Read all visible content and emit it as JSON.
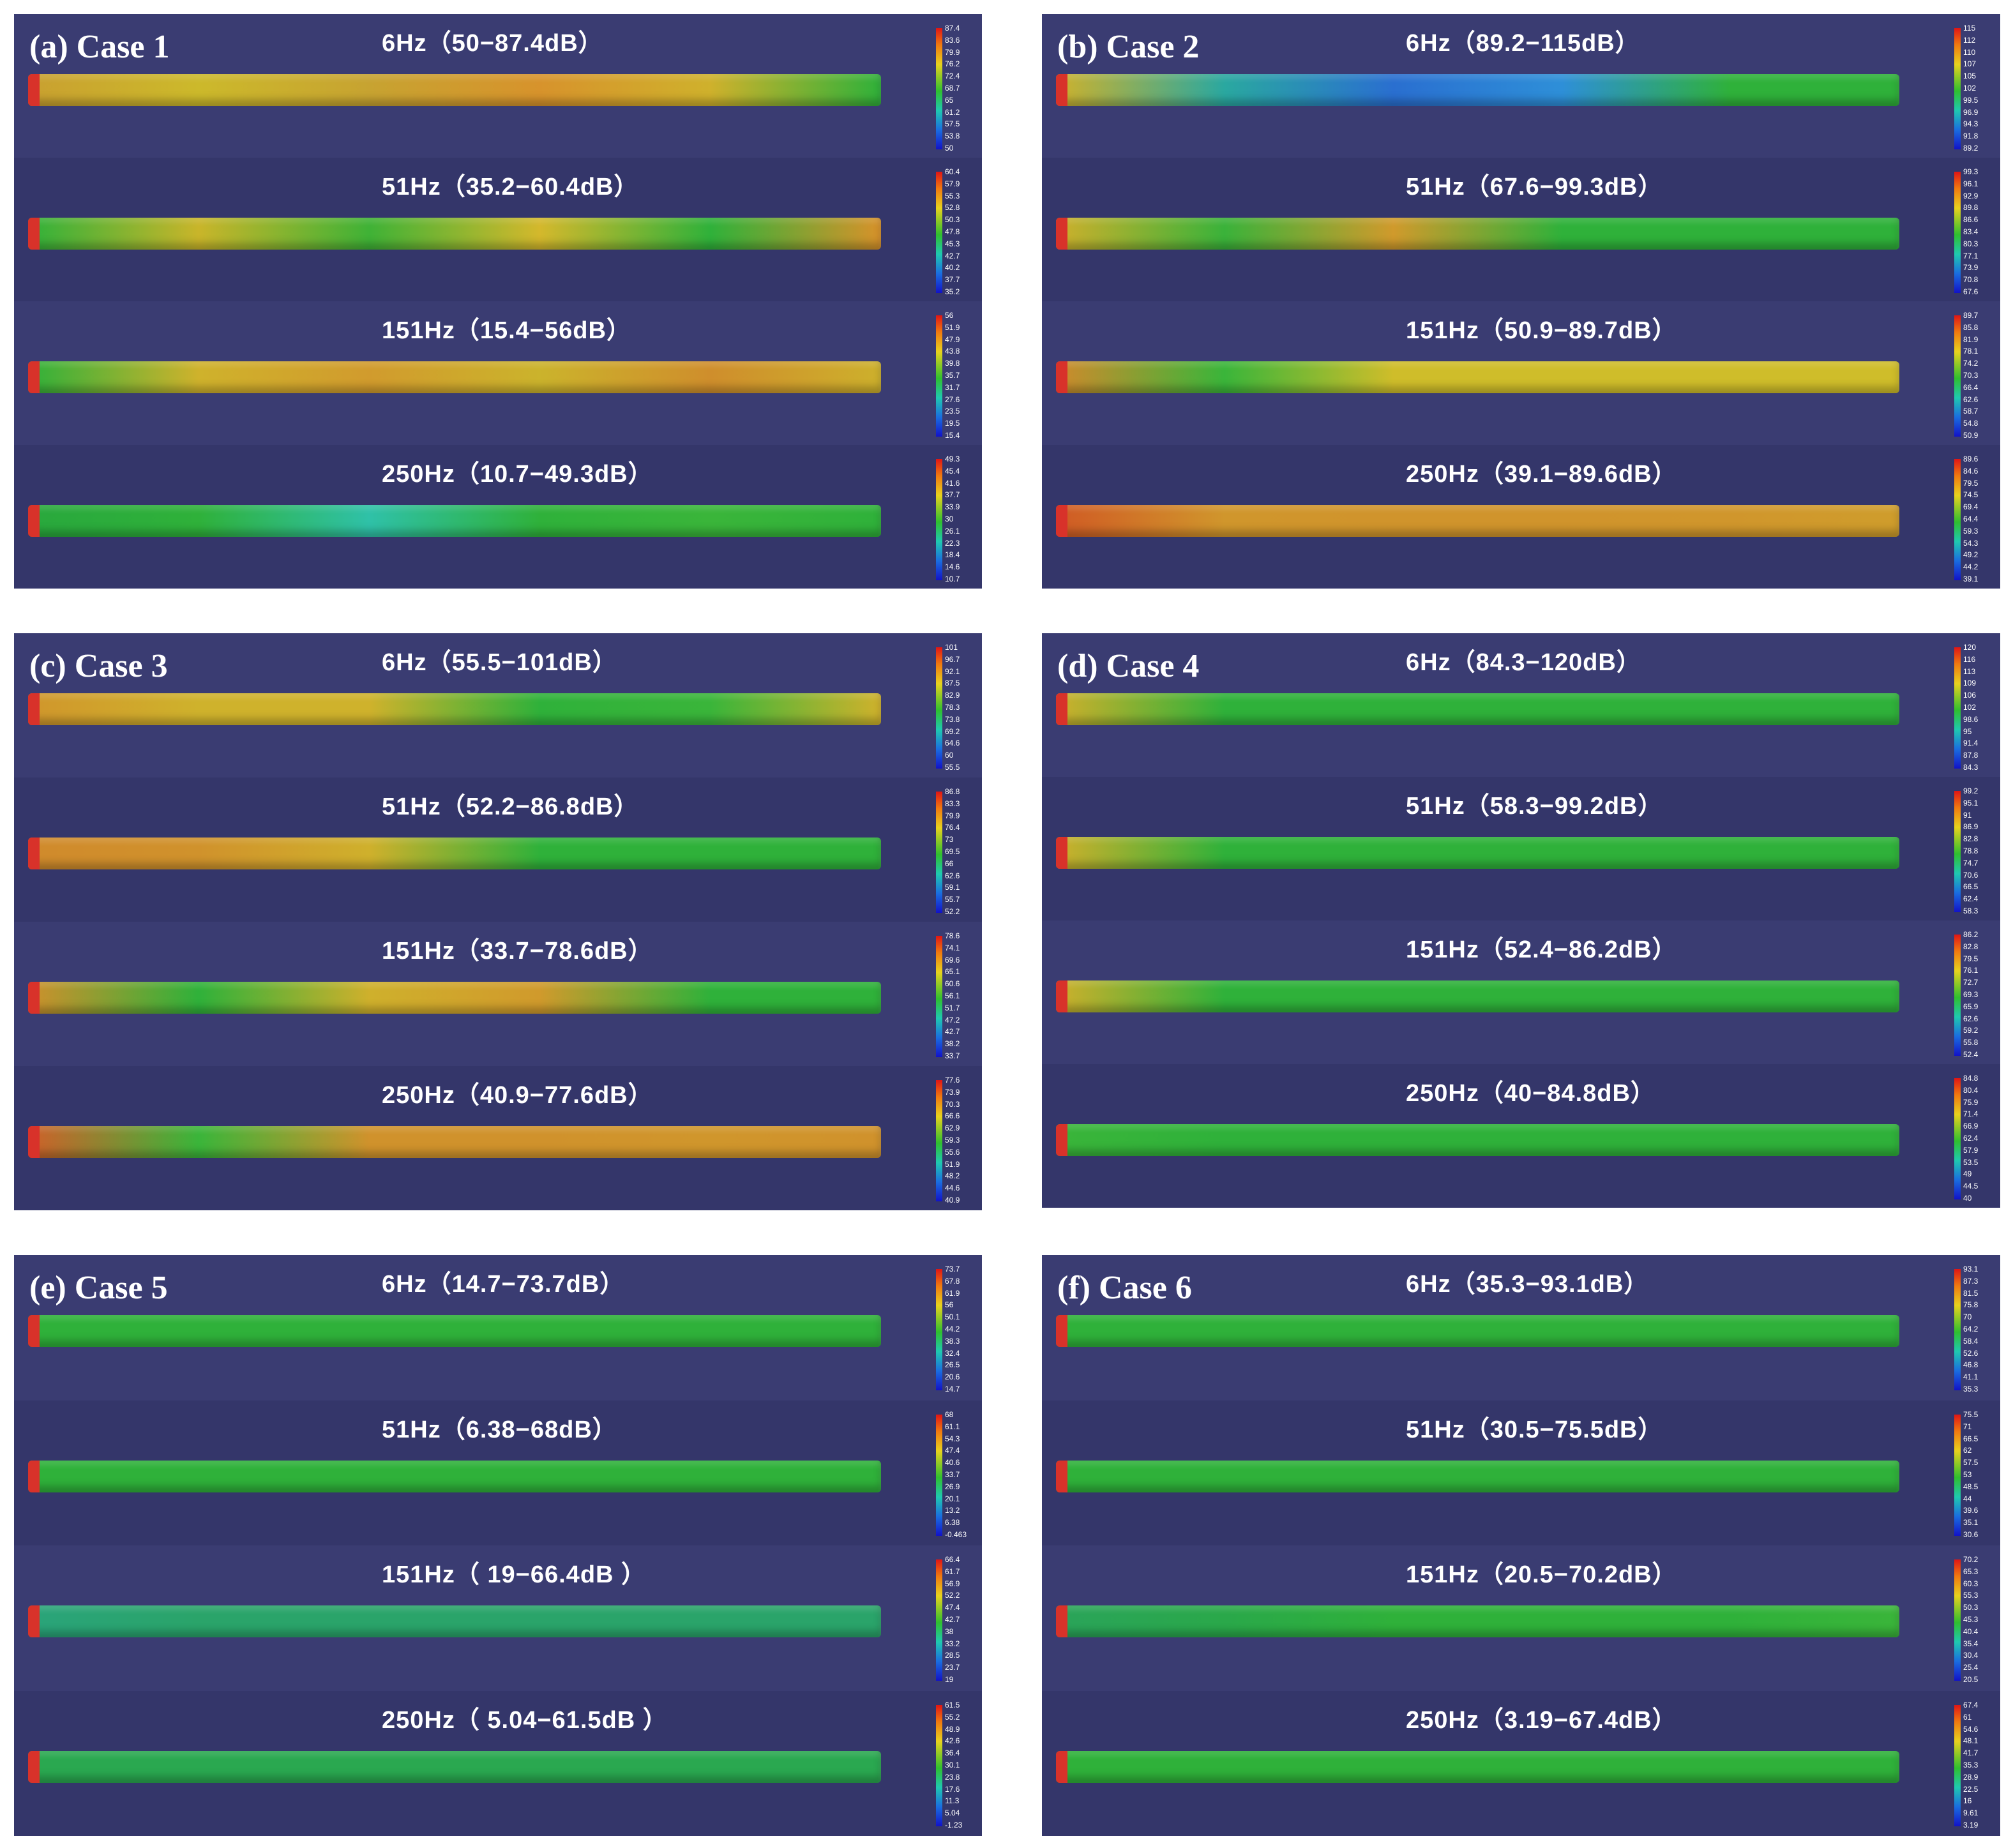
{
  "panels": [
    {
      "label": "(a) Case 1",
      "rows": [
        {
          "title": "6Hz（50−87.4dB）",
          "ticks": [
            "87.4",
            "83.6",
            "79.9",
            "76.2",
            "72.4",
            "68.7",
            "65",
            "61.2",
            "57.5",
            "53.8",
            "50"
          ],
          "colors": [
            "#c9a030",
            "#ccb92b",
            "#c7a331",
            "#d7932c",
            "#cfb12c",
            "#2fb13a"
          ]
        },
        {
          "title": "51Hz（35.2−60.4dB）",
          "ticks": [
            "60.4",
            "57.9",
            "55.3",
            "52.8",
            "50.3",
            "47.8",
            "45.3",
            "42.7",
            "40.2",
            "37.7",
            "35.2"
          ],
          "colors": [
            "#2fb13a",
            "#c9b52a",
            "#3fb236",
            "#d4b82c",
            "#2fb13a",
            "#d8922a"
          ]
        },
        {
          "title": "151Hz（15.4−56dB）",
          "ticks": [
            "56",
            "51.9",
            "47.9",
            "43.8",
            "39.8",
            "35.7",
            "31.7",
            "27.6",
            "23.5",
            "19.5",
            "15.4"
          ],
          "colors": [
            "#2fb13a",
            "#cfb22c",
            "#d19b2d",
            "#cbb32c",
            "#cf8e2c",
            "#cdb02c"
          ]
        },
        {
          "title": "250Hz（10.7−49.3dB）",
          "ticks": [
            "49.3",
            "45.4",
            "41.6",
            "37.7",
            "33.9",
            "30",
            "26.1",
            "22.3",
            "18.4",
            "14.6",
            "10.7"
          ],
          "colors": [
            "#29a83d",
            "#2fb13a",
            "#2fc1a8",
            "#2fb13a",
            "#3ab53a",
            "#2fb13a"
          ]
        }
      ]
    },
    {
      "label": "(b) Case 2",
      "rows": [
        {
          "title": "6Hz（89.2−115dB）",
          "ticks": [
            "115",
            "112",
            "110",
            "107",
            "105",
            "102",
            "99.5",
            "96.9",
            "94.3",
            "91.8",
            "89.2"
          ],
          "colors": [
            "#cfb22c",
            "#2aa8a0",
            "#2a6fd0",
            "#2e8fd8",
            "#2fb13a",
            "#2fb13a"
          ]
        },
        {
          "title": "51Hz（67.6−99.3dB）",
          "ticks": [
            "99.3",
            "96.1",
            "92.9",
            "89.8",
            "86.6",
            "83.4",
            "80.3",
            "77.1",
            "73.9",
            "70.8",
            "67.6"
          ],
          "colors": [
            "#cfb02c",
            "#3ab23a",
            "#d09a2c",
            "#2fb13a",
            "#2fb13a",
            "#2fb13a"
          ]
        },
        {
          "title": "151Hz（50.9−89.7dB）",
          "ticks": [
            "89.7",
            "85.8",
            "81.9",
            "78.1",
            "74.2",
            "70.3",
            "66.4",
            "62.6",
            "58.7",
            "54.8",
            "50.9"
          ],
          "colors": [
            "#d08a2c",
            "#3ab53a",
            "#cfbd2a",
            "#cfbd2a",
            "#cfbd2a",
            "#cfbd2a"
          ]
        },
        {
          "title": "250Hz（39.1−89.6dB）",
          "ticks": [
            "89.6",
            "84.6",
            "79.5",
            "74.5",
            "69.4",
            "64.4",
            "59.3",
            "54.3",
            "49.2",
            "44.2",
            "39.1"
          ],
          "colors": [
            "#d05a24",
            "#d0962c",
            "#d0942c",
            "#d0942c",
            "#d0962c",
            "#cf9d2c"
          ]
        }
      ]
    },
    {
      "label": "(c) Case 3",
      "rows": [
        {
          "title": "6Hz（55.5−101dB）",
          "ticks": [
            "101",
            "96.7",
            "92.1",
            "87.5",
            "82.9",
            "78.3",
            "73.8",
            "69.2",
            "64.6",
            "60",
            "55.5"
          ],
          "colors": [
            "#d0962c",
            "#cfb22c",
            "#cfb22c",
            "#2fb13a",
            "#3ab53a",
            "#cfb22c"
          ]
        },
        {
          "title": "51Hz（52.2−86.8dB）",
          "ticks": [
            "86.8",
            "83.3",
            "79.9",
            "76.4",
            "73",
            "69.5",
            "66",
            "62.6",
            "59.1",
            "55.7",
            "52.2"
          ],
          "colors": [
            "#d08a2c",
            "#d0922c",
            "#cfb02c",
            "#2fb13a",
            "#2fb13a",
            "#2fb13a"
          ]
        },
        {
          "title": "151Hz（33.7−78.6dB）",
          "ticks": [
            "78.6",
            "74.1",
            "69.6",
            "65.1",
            "60.6",
            "56.1",
            "51.7",
            "47.2",
            "42.7",
            "38.2",
            "33.7"
          ],
          "colors": [
            "#d0902c",
            "#2fb13a",
            "#cfb02c",
            "#d09a2c",
            "#2fb13a",
            "#2fb13a"
          ]
        },
        {
          "title": "250Hz（40.9−77.6dB）",
          "ticks": [
            "77.6",
            "73.9",
            "70.3",
            "66.6",
            "62.9",
            "59.3",
            "55.6",
            "51.9",
            "48.2",
            "44.6",
            "40.9"
          ],
          "colors": [
            "#d0602a",
            "#3ab53a",
            "#d0922c",
            "#d0922c",
            "#d0962c",
            "#d0922c"
          ]
        }
      ]
    },
    {
      "label": "(d) Case 4",
      "rows": [
        {
          "title": "6Hz（84.3−120dB）",
          "ticks": [
            "120",
            "116",
            "113",
            "109",
            "106",
            "102",
            "98.6",
            "95",
            "91.4",
            "87.8",
            "84.3"
          ],
          "colors": [
            "#cfb02c",
            "#2fb13a",
            "#2fb13a",
            "#2fb13a",
            "#2fb13a",
            "#2fb13a"
          ]
        },
        {
          "title": "51Hz（58.3−99.2dB）",
          "ticks": [
            "99.2",
            "95.1",
            "91",
            "86.9",
            "82.8",
            "78.8",
            "74.7",
            "70.6",
            "66.5",
            "62.4",
            "58.3"
          ],
          "colors": [
            "#cfb02c",
            "#2fb13a",
            "#2fb13a",
            "#2fb13a",
            "#2fb13a",
            "#2fb13a"
          ]
        },
        {
          "title": "151Hz（52.4−86.2dB）",
          "ticks": [
            "86.2",
            "82.8",
            "79.5",
            "76.1",
            "72.7",
            "69.3",
            "65.9",
            "62.6",
            "59.2",
            "55.8",
            "52.4"
          ],
          "colors": [
            "#cfb02c",
            "#2fb13a",
            "#2fb13a",
            "#2fb13a",
            "#2fb13a",
            "#2fb13a"
          ]
        },
        {
          "title": "250Hz（40−84.8dB）",
          "ticks": [
            "84.8",
            "80.4",
            "75.9",
            "71.4",
            "66.9",
            "62.4",
            "57.9",
            "53.5",
            "49",
            "44.5",
            "40"
          ],
          "colors": [
            "#3ab53a",
            "#2fb13a",
            "#2fb13a",
            "#2fb13a",
            "#2fb13a",
            "#2fb13a"
          ]
        }
      ]
    },
    {
      "label": "(e) Case 5",
      "rows": [
        {
          "title": "6Hz（14.7−73.7dB）",
          "ticks": [
            "73.7",
            "67.8",
            "61.9",
            "56",
            "50.1",
            "44.2",
            "38.3",
            "32.4",
            "26.5",
            "20.6",
            "14.7"
          ],
          "colors": [
            "#2fb13a",
            "#2fb13a",
            "#2fb13a",
            "#2fb13a",
            "#2fb13a",
            "#2fb13a"
          ]
        },
        {
          "title": "51Hz（6.38−68dB）",
          "ticks": [
            "68",
            "61.1",
            "54.3",
            "47.4",
            "40.6",
            "33.7",
            "26.9",
            "20.1",
            "13.2",
            "6.38",
            "-0.463"
          ],
          "colors": [
            "#2fb13a",
            "#2fb13a",
            "#2fb13a",
            "#2fb13a",
            "#2fb13a",
            "#2fb13a"
          ]
        },
        {
          "title": "151Hz（ 19−66.4dB ）",
          "ticks": [
            "66.4",
            "61.7",
            "56.9",
            "52.2",
            "47.4",
            "42.7",
            "38",
            "33.2",
            "28.5",
            "23.7",
            "19"
          ],
          "colors": [
            "#2aa47a",
            "#2aa46a",
            "#2aa46a",
            "#2aa46a",
            "#2aa46a",
            "#2aa46a"
          ]
        },
        {
          "title": "250Hz（ 5.04−61.5dB ）",
          "ticks": [
            "61.5",
            "55.2",
            "48.9",
            "42.6",
            "36.4",
            "30.1",
            "23.8",
            "17.6",
            "11.3",
            "5.04",
            "-1.23"
          ],
          "colors": [
            "#2aa850",
            "#2aa850",
            "#2aa850",
            "#2aa850",
            "#2aa850",
            "#2aa850"
          ]
        }
      ]
    },
    {
      "label": "(f) Case 6",
      "rows": [
        {
          "title": "6Hz（35.3−93.1dB）",
          "ticks": [
            "93.1",
            "87.3",
            "81.5",
            "75.8",
            "70",
            "64.2",
            "58.4",
            "52.6",
            "46.8",
            "41.1",
            "35.3"
          ],
          "colors": [
            "#2fb13a",
            "#2fb13a",
            "#2fb13a",
            "#2fb13a",
            "#2fb13a",
            "#2fb13a"
          ]
        },
        {
          "title": "51Hz（30.5−75.5dB）",
          "ticks": [
            "75.5",
            "71",
            "66.5",
            "62",
            "57.5",
            "53",
            "48.5",
            "44",
            "39.6",
            "35.1",
            "30.6"
          ],
          "colors": [
            "#2fb13a",
            "#2fb13a",
            "#2fb13a",
            "#2fb13a",
            "#2fb13a",
            "#2fb13a"
          ]
        },
        {
          "title": "151Hz（20.5−70.2dB）",
          "ticks": [
            "70.2",
            "65.3",
            "60.3",
            "55.3",
            "50.3",
            "45.3",
            "40.4",
            "35.4",
            "30.4",
            "25.4",
            "20.5"
          ],
          "colors": [
            "#2aa45a",
            "#2aa84a",
            "#2fb13a",
            "#2fb13a",
            "#2fb13a",
            "#3ab53a"
          ]
        },
        {
          "title": "250Hz（3.19−67.4dB）",
          "ticks": [
            "67.4",
            "61",
            "54.6",
            "48.1",
            "41.7",
            "35.3",
            "28.9",
            "22.5",
            "16",
            "9.61",
            "3.19"
          ],
          "colors": [
            "#2fb13a",
            "#2fb13a",
            "#2fb13a",
            "#2fb13a",
            "#2fb13a",
            "#2fb13a"
          ]
        }
      ]
    }
  ]
}
